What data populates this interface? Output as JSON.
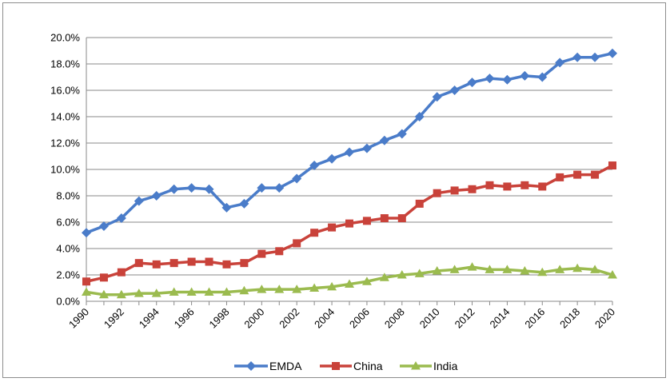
{
  "chart_data": {
    "type": "line",
    "title": "",
    "xlabel": "",
    "ylabel": "",
    "x": [
      1990,
      1991,
      1992,
      1993,
      1994,
      1995,
      1996,
      1997,
      1998,
      1999,
      2000,
      2001,
      2002,
      2003,
      2004,
      2005,
      2006,
      2007,
      2008,
      2009,
      2010,
      2011,
      2012,
      2013,
      2014,
      2015,
      2016,
      2017,
      2018,
      2019,
      2020
    ],
    "x_tick_labels": [
      "1990",
      "1992",
      "1994",
      "1996",
      "1998",
      "2000",
      "2002",
      "2004",
      "2006",
      "2008",
      "2010",
      "2012",
      "2014",
      "2016",
      "2018",
      "2020"
    ],
    "y_tick_labels": [
      "0.0%",
      "2.0%",
      "4.0%",
      "6.0%",
      "8.0%",
      "10.0%",
      "12.0%",
      "14.0%",
      "16.0%",
      "18.0%",
      "20.0%"
    ],
    "ylim": [
      0,
      20
    ],
    "grid": "horizontal",
    "legend_position": "bottom",
    "series": [
      {
        "name": "EMDA",
        "color": "#4a7cc9",
        "marker": "diamond",
        "values": [
          5.2,
          5.7,
          6.3,
          7.6,
          8.0,
          8.5,
          8.6,
          8.5,
          7.1,
          7.4,
          8.6,
          8.6,
          9.3,
          10.3,
          10.8,
          11.3,
          11.6,
          12.2,
          12.7,
          14.0,
          15.5,
          16.0,
          16.6,
          16.9,
          16.8,
          17.1,
          17.0,
          18.1,
          18.5,
          18.5,
          18.8
        ]
      },
      {
        "name": "China",
        "color": "#c9423a",
        "marker": "square",
        "values": [
          1.5,
          1.8,
          2.2,
          2.9,
          2.8,
          2.9,
          3.0,
          3.0,
          2.8,
          2.9,
          3.6,
          3.8,
          4.4,
          5.2,
          5.6,
          5.9,
          6.1,
          6.3,
          6.3,
          7.4,
          8.2,
          8.4,
          8.5,
          8.8,
          8.7,
          8.8,
          8.7,
          9.4,
          9.6,
          9.6,
          10.3
        ]
      },
      {
        "name": "India",
        "color": "#9bbb4f",
        "marker": "triangle",
        "values": [
          0.7,
          0.5,
          0.5,
          0.6,
          0.6,
          0.7,
          0.7,
          0.7,
          0.7,
          0.8,
          0.9,
          0.9,
          0.9,
          1.0,
          1.1,
          1.3,
          1.5,
          1.8,
          2.0,
          2.1,
          2.3,
          2.4,
          2.6,
          2.4,
          2.4,
          2.3,
          2.2,
          2.4,
          2.5,
          2.4,
          2.0
        ]
      }
    ]
  }
}
